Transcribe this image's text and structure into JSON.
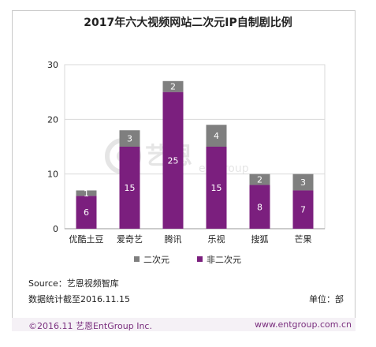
{
  "title": "2017年六大视频网站二次元IP自制剧比例",
  "source_label": "Source：艺恩视频智库",
  "stats_date": "数据统计截至2016.11.15",
  "unit_label": "单位：部",
  "copyright": "©2016.11 艺恩EntGroup Inc.",
  "website": "www.entgroup.com.cn",
  "watermark": {
    "cn": "艺恩",
    "en": "entgroup"
  },
  "colors": {
    "series_erciyuan": "#7f7f7f",
    "series_fei": "#7b1f7e",
    "frame": "#c9c9c9"
  },
  "chart_data": {
    "type": "bar",
    "stacked": true,
    "title": "2017年六大视频网站二次元IP自制剧比例",
    "categories": [
      "优酷土豆",
      "爱奇艺",
      "腾讯",
      "乐视",
      "搜狐",
      "芒果"
    ],
    "series": [
      {
        "name": "非二次元",
        "values": [
          6,
          15,
          25,
          15,
          8,
          7
        ],
        "color": "#7b1f7e"
      },
      {
        "name": "二次元",
        "values": [
          1,
          3,
          2,
          4,
          2,
          3
        ],
        "color": "#7f7f7f"
      }
    ],
    "legend_order": [
      "二次元",
      "非二次元"
    ],
    "xlabel": "",
    "ylabel": "",
    "ylim": [
      0,
      30
    ],
    "yticks": [
      0,
      10,
      20,
      30
    ],
    "grid": true,
    "legend_position": "bottom"
  }
}
